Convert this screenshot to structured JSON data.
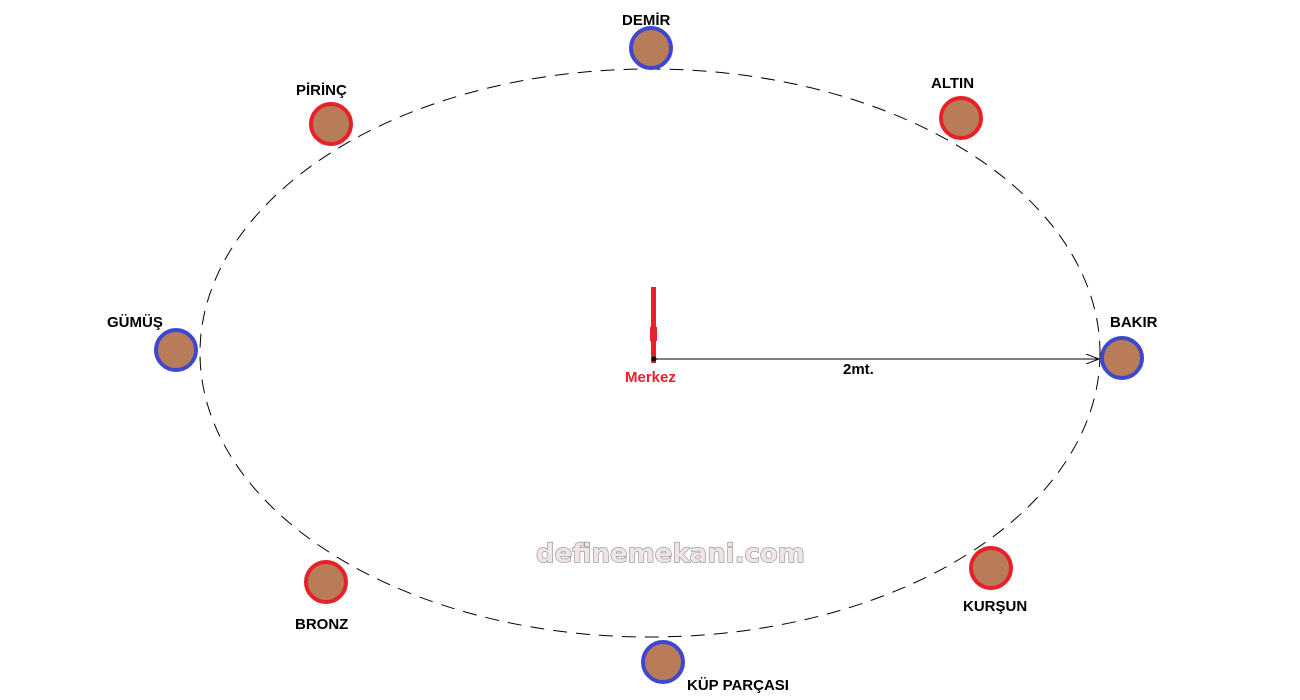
{
  "center": {
    "label": "Merkez",
    "color": "#e8202a"
  },
  "radius_label": "2mt.",
  "watermark": "definemekani.com",
  "colors": {
    "fill": "#b97c59",
    "red": "#e8202a",
    "blue": "#3f48cc"
  },
  "points": [
    {
      "label": "DEMİR",
      "ring": "blue"
    },
    {
      "label": "ALTIN",
      "ring": "red"
    },
    {
      "label": "PİRİNÇ",
      "ring": "red"
    },
    {
      "label": "GÜMÜŞ",
      "ring": "blue"
    },
    {
      "label": "BAKIR",
      "ring": "blue"
    },
    {
      "label": "BRONZ",
      "ring": "red"
    },
    {
      "label": "KURŞUN",
      "ring": "red"
    },
    {
      "label": "KÜP PARÇASI",
      "ring": "blue"
    }
  ]
}
